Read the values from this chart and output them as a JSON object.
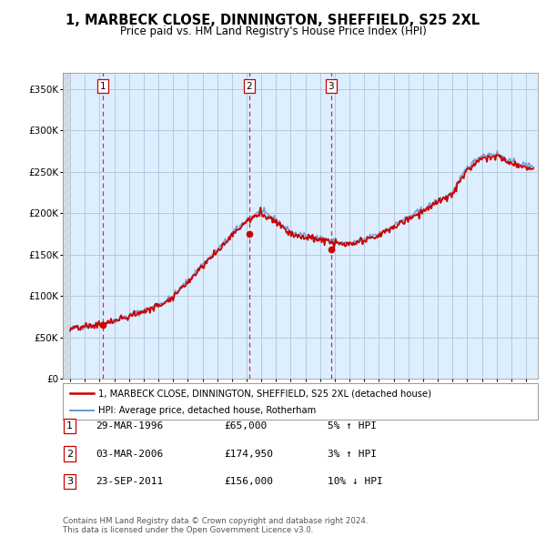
{
  "title": "1, MARBECK CLOSE, DINNINGTON, SHEFFIELD, S25 2XL",
  "subtitle": "Price paid vs. HM Land Registry's House Price Index (HPI)",
  "ylim": [
    0,
    370000
  ],
  "yticks": [
    0,
    50000,
    100000,
    150000,
    200000,
    250000,
    300000,
    350000
  ],
  "ytick_labels": [
    "£0",
    "£50K",
    "£100K",
    "£150K",
    "£200K",
    "£250K",
    "£300K",
    "£350K"
  ],
  "plot_bg_color": "#ddeeff",
  "grid_color": "#b0c4d8",
  "red_line_color": "#cc0000",
  "blue_line_color": "#6699cc",
  "transactions": [
    {
      "label": "1",
      "date_x": 1996.23,
      "price": 65000,
      "pct": "5%",
      "dir": "↑",
      "date_str": "29-MAR-1996",
      "price_str": "£65,000"
    },
    {
      "label": "2",
      "date_x": 2006.17,
      "price": 174950,
      "pct": "3%",
      "dir": "↑",
      "date_str": "03-MAR-2006",
      "price_str": "£174,950"
    },
    {
      "label": "3",
      "date_x": 2011.73,
      "price": 156000,
      "pct": "10%",
      "dir": "↓",
      "date_str": "23-SEP-2011",
      "price_str": "£156,000"
    }
  ],
  "legend_red_label": "1, MARBECK CLOSE, DINNINGTON, SHEFFIELD, S25 2XL (detached house)",
  "legend_blue_label": "HPI: Average price, detached house, Rotherham",
  "footer": "Contains HM Land Registry data © Crown copyright and database right 2024.\nThis data is licensed under the Open Government Licence v3.0.",
  "xmin": 1993.5,
  "xmax": 2025.8
}
